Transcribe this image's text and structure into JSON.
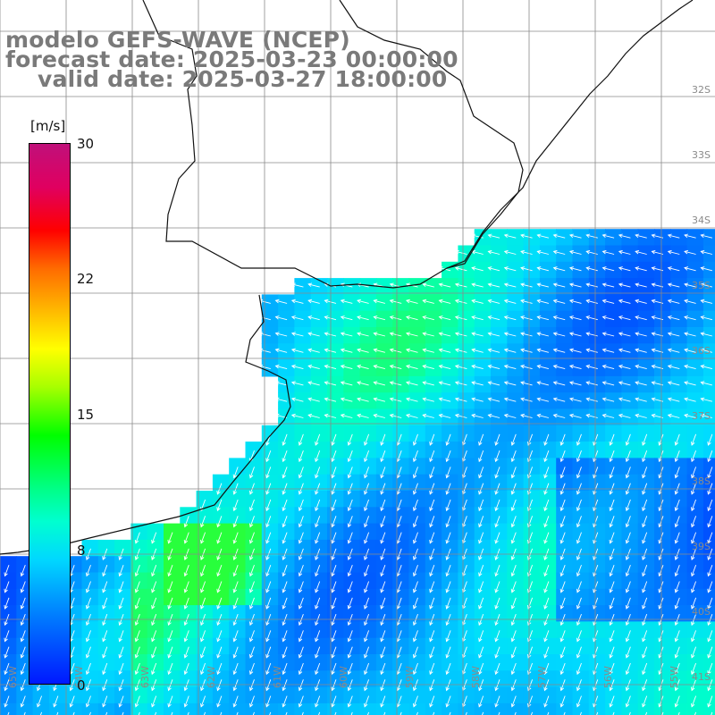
{
  "title": {
    "line1": "modelo GEFS-WAVE (NCEP)",
    "line2": "forecast date: 2025-03-23 00:00:00",
    "line3": "valid date: 2025-03-27 18:00:00"
  },
  "colorbar": {
    "unit": "[m/s]",
    "ticks": [
      "30",
      "22",
      "15",
      "8",
      "0"
    ],
    "colors": [
      "#0018ff",
      "#0080ff",
      "#00d8ff",
      "#00ffd0",
      "#00ff00",
      "#ffff00",
      "#ff0000",
      "#c0107a"
    ]
  },
  "map": {
    "lat_labels": [
      "32S",
      "33S",
      "34S",
      "35S",
      "36S",
      "37S",
      "38S",
      "39S",
      "40S",
      "41S"
    ],
    "lon_labels": [
      "65W",
      "64W",
      "63W",
      "62W",
      "61W",
      "60W",
      "59W",
      "58W",
      "57W",
      "56W",
      "55W"
    ],
    "land_color": "#ffffff",
    "grid_color": "#8a8a8a",
    "arrow_color": "#ffffff"
  }
}
